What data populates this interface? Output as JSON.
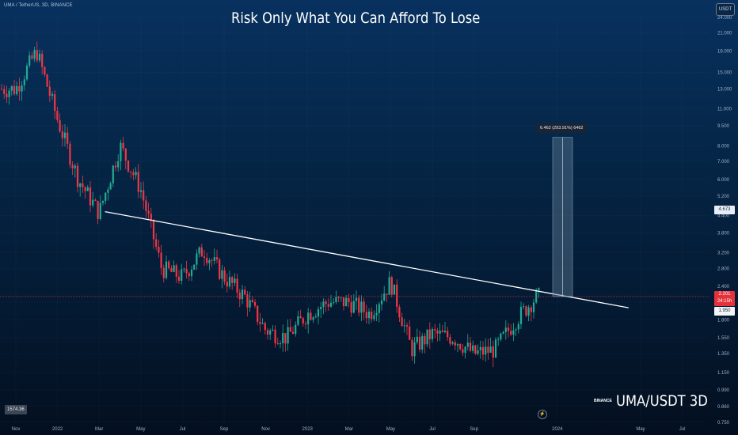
{
  "header": {
    "symbol_line": "UMA / TetherUS, 3D, BINANCE"
  },
  "title": "Risk Only What You Can Afford To Lose",
  "quote_currency": "USDT",
  "watermark": {
    "exchange": "BINANCE",
    "pair": "UMA/USDT 3D"
  },
  "crosshair_x_label": "1574.36",
  "measure_label": "6.462 (293.91%) 6462",
  "price_tags": {
    "current_high": "4.673",
    "last_price": "2.201",
    "last_price_sub": "24:15h",
    "white_level": "1.950"
  },
  "colors": {
    "up": "#22ab94",
    "down": "#f23645",
    "trendline": "#ffffff",
    "measure_fill": "#5d7a93",
    "price_line": "#e4313a"
  },
  "chart_data": {
    "type": "candlestick",
    "title": "Risk Only What You Can Afford To Lose",
    "y_scale": "log",
    "ylim": [
      0.75,
      24.0
    ],
    "y_ticks": [
      "24.000",
      "21.000",
      "18.000",
      "15.000",
      "13.000",
      "11.000",
      "9.500",
      "8.000",
      "7.000",
      "6.000",
      "5.200",
      "4.400",
      "3.800",
      "3.200",
      "2.800",
      "2.400",
      "2.100",
      "1.800",
      "1.550",
      "1.350",
      "1.150",
      "0.990",
      "0.860",
      "0.750"
    ],
    "x_ticks": [
      "Nov",
      "2022",
      "Mar",
      "May",
      "Jul",
      "Sep",
      "Nov",
      "2023",
      "Mar",
      "May",
      "Jul",
      "Sep",
      "Nov",
      "2024",
      "Mar",
      "May",
      "Jul"
    ],
    "x_range": [
      "Nov 2021",
      "Sep 2024"
    ],
    "series": [
      {
        "x": [
          "Nov 2021",
          "Dec 2021",
          "Jan 2022",
          "Feb 2022",
          "Mar 2022",
          "Apr 2022",
          "May 2022",
          "Jun 2022",
          "Jul 2022",
          "Aug 2022",
          "Sep 2022",
          "Oct 2022",
          "Nov 2022",
          "Dec 2022",
          "Jan 2023",
          "Feb 2023",
          "Mar 2023",
          "Apr 2023",
          "May 2023",
          "Jun 2023",
          "Jul 2023",
          "Aug 2023",
          "Sep 2023",
          "Oct 2023",
          "Nov 2023",
          "Dec 2023"
        ],
        "values": [
          13.0,
          18.0,
          10.0,
          6.0,
          4.5,
          8.0,
          5.5,
          2.8,
          2.6,
          3.3,
          2.6,
          2.2,
          1.65,
          1.55,
          1.9,
          2.1,
          2.1,
          1.9,
          2.5,
          1.4,
          1.6,
          1.55,
          1.35,
          1.4,
          1.8,
          2.2
        ]
      }
    ],
    "trendline": {
      "from": {
        "x": "Jan 2022",
        "y": 4.55
      },
      "to": {
        "x": "Jan 2024",
        "y": 2.0
      }
    },
    "last_price": 2.201
  }
}
